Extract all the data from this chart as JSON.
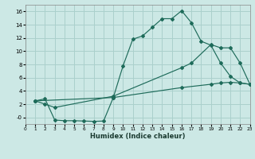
{
  "xlabel": "Humidex (Indice chaleur)",
  "bg_color": "#cce8e5",
  "grid_color": "#aad0cc",
  "line_color": "#1e6b5a",
  "xlim": [
    0,
    23
  ],
  "ylim": [
    -1.0,
    17.0
  ],
  "xticks": [
    0,
    1,
    2,
    3,
    4,
    5,
    6,
    7,
    8,
    9,
    10,
    11,
    12,
    13,
    14,
    15,
    16,
    17,
    18,
    19,
    20,
    21,
    22,
    23
  ],
  "yticks": [
    0,
    2,
    4,
    6,
    8,
    10,
    12,
    14,
    16
  ],
  "ytick_labels": [
    "-0",
    "2",
    "4",
    "6",
    "8",
    "10",
    "12",
    "14",
    "16"
  ],
  "line1_x": [
    1,
    2,
    3,
    4,
    5,
    6,
    7,
    8,
    9,
    10,
    11,
    12,
    13,
    14,
    15,
    16,
    17,
    18,
    19,
    20,
    21,
    22,
    23
  ],
  "line1_y": [
    2.5,
    2.8,
    -0.4,
    -0.5,
    -0.5,
    -0.55,
    -0.6,
    -0.55,
    3.0,
    7.8,
    11.8,
    12.3,
    13.6,
    14.9,
    14.9,
    16.1,
    14.3,
    11.5,
    10.9,
    8.2,
    6.2,
    5.2,
    5.0
  ],
  "line2_x": [
    1,
    2,
    3,
    9,
    16,
    17,
    19,
    20,
    21,
    22,
    23
  ],
  "line2_y": [
    2.5,
    2.0,
    1.5,
    3.2,
    7.5,
    8.2,
    11.0,
    10.5,
    10.5,
    8.2,
    5.0
  ],
  "line3_x": [
    1,
    9,
    16,
    19,
    20,
    21,
    22,
    23
  ],
  "line3_y": [
    2.5,
    3.0,
    4.5,
    5.0,
    5.2,
    5.3,
    5.2,
    5.0
  ]
}
